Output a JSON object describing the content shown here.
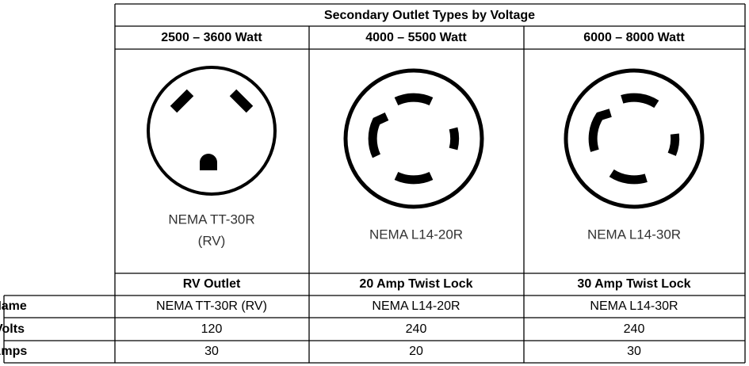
{
  "title": "Secondary Outlet Types by Voltage",
  "columns": [
    {
      "wattage": "2500 – 3600 Watt",
      "image_label": [
        "NEMA TT-30R",
        "(RV)"
      ],
      "outlet_type": "RV Outlet"
    },
    {
      "wattage": "4000 – 5500 Watt",
      "image_label": [
        "NEMA L14-20R"
      ],
      "outlet_type": "20 Amp Twist Lock"
    },
    {
      "wattage": "6000 – 8000 Watt",
      "image_label": [
        "NEMA L14-30R"
      ],
      "outlet_type": "30 Amp Twist Lock"
    }
  ],
  "rows": [
    {
      "label": "Name",
      "values": [
        "NEMA TT-30R (RV)",
        "NEMA L14-20R",
        "NEMA L14-30R"
      ]
    },
    {
      "label": "Volts",
      "values": [
        120,
        240,
        240
      ]
    },
    {
      "label": "Amps",
      "values": [
        30,
        20,
        30
      ]
    }
  ]
}
